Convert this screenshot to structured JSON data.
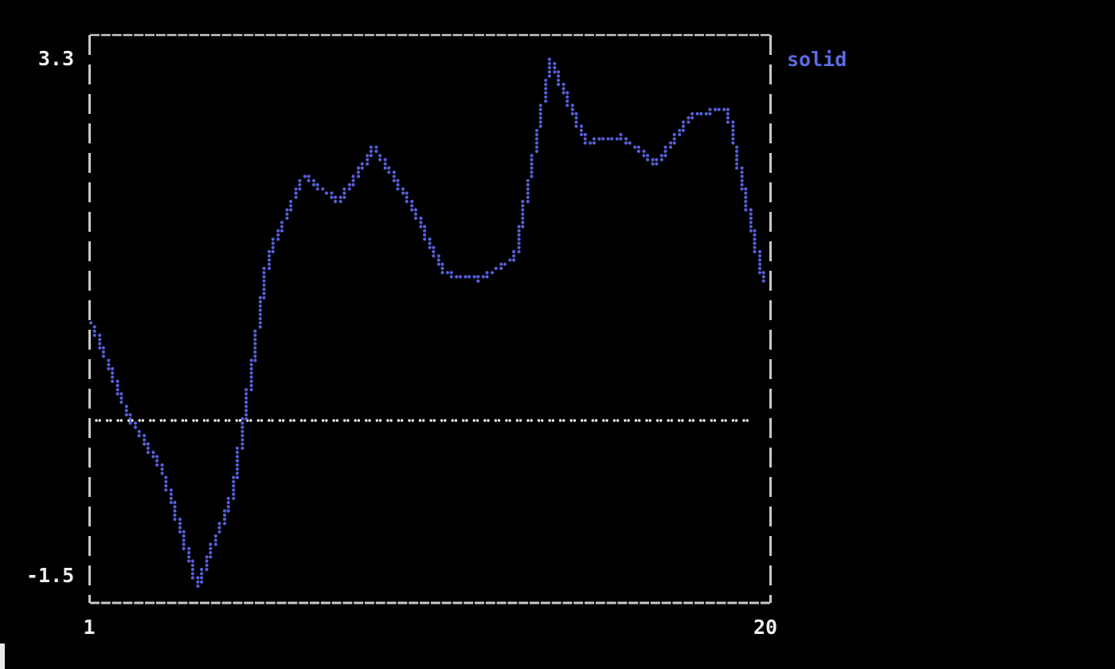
{
  "app": {
    "type": "terminal-plot",
    "background": "#000000"
  },
  "chart_data": {
    "type": "line",
    "style": "terminal-braille-dotted",
    "title": "",
    "xlabel": "",
    "ylabel": "",
    "series": [
      {
        "name": "solid",
        "color": "#5560d8",
        "marker": "braille-dot",
        "x": [
          1,
          2,
          3,
          4,
          5,
          6,
          7,
          8,
          9,
          10,
          11,
          12,
          13,
          14,
          15,
          16,
          17,
          18,
          19,
          20
        ],
        "values": [
          0.9,
          0.08,
          -0.45,
          -1.5,
          -0.65,
          1.5,
          2.25,
          2.0,
          2.5,
          2.0,
          1.35,
          1.3,
          1.5,
          3.3,
          2.55,
          2.6,
          2.35,
          2.8,
          2.85,
          1.3
        ]
      }
    ],
    "reference_line": {
      "value": 0,
      "color": "#f0f0f0",
      "style": "dotted"
    },
    "axes": {
      "xlim": [
        1,
        20
      ],
      "ylim": [
        -1.5,
        3.3
      ],
      "x_tick_labels": [
        "1",
        "20"
      ],
      "y_tick_labels": [
        "3.3",
        "-1.5"
      ],
      "grid": false,
      "border_style": "dashed",
      "border_color": "#c9c9c9",
      "label_color": "#f0f0f0"
    },
    "legend": {
      "position": "top-right-outside",
      "entries": [
        {
          "label": "solid",
          "color": "#5c6ce2"
        }
      ]
    }
  },
  "labels": {
    "y_max": "3.3",
    "y_min": "-1.5",
    "x_min": "1",
    "x_max": "20",
    "legend": "solid"
  },
  "terminal": {
    "cursor_visible": true,
    "cursor_color": "#e8e8e8"
  }
}
